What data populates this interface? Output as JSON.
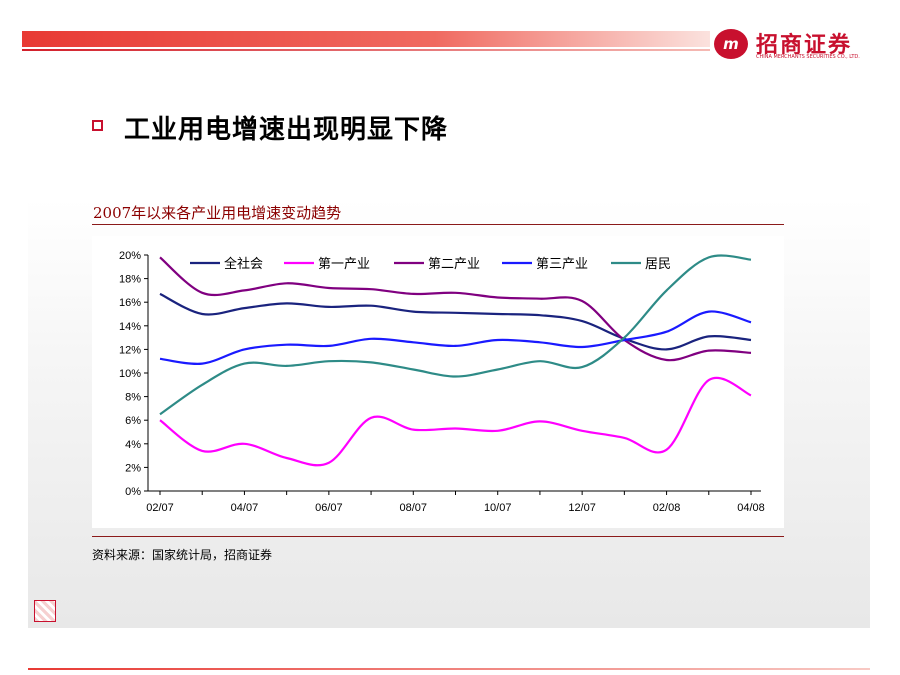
{
  "header": {
    "logo_badge": "m",
    "logo_cn": "招商证券",
    "logo_en": "CHINA MERCHANTS SECURITIES CO., LTD."
  },
  "slide": {
    "heading": "工业用电增速出现明显下降",
    "source": "资料来源：国家统计局，招商证券"
  },
  "colors": {
    "accent": "#c8102e",
    "title_text": "#8b0000"
  },
  "chart_data": {
    "type": "line",
    "title": "2007年以来各产业用电增速变动趋势",
    "x": [
      "02/07",
      "03/07",
      "04/07",
      "05/07",
      "06/07",
      "07/07",
      "08/07",
      "09/07",
      "10/07",
      "11/07",
      "12/07",
      "01/08",
      "02/08",
      "03/08",
      "04/08"
    ],
    "xticks": [
      "02/07",
      "04/07",
      "06/07",
      "08/07",
      "10/07",
      "12/07",
      "02/08",
      "04/08"
    ],
    "ylim": [
      0,
      20
    ],
    "yticks": [
      "0%",
      "2%",
      "4%",
      "6%",
      "8%",
      "10%",
      "12%",
      "14%",
      "16%",
      "18%",
      "20%"
    ],
    "grid": false,
    "legend": "top",
    "series": [
      {
        "name": "全社会",
        "color": "#1a237e",
        "values": [
          16.7,
          15.0,
          15.5,
          15.9,
          15.6,
          15.7,
          15.2,
          15.1,
          15.0,
          14.9,
          14.4,
          12.9,
          12.0,
          13.1,
          12.8
        ]
      },
      {
        "name": "第一产业",
        "color": "#ff00ff",
        "values": [
          6.0,
          3.4,
          4.0,
          2.8,
          2.4,
          6.2,
          5.2,
          5.3,
          5.1,
          5.9,
          5.1,
          4.5,
          3.5,
          9.4,
          8.1
        ]
      },
      {
        "name": "第二产业",
        "color": "#800080",
        "values": [
          19.8,
          16.8,
          17.0,
          17.6,
          17.2,
          17.1,
          16.7,
          16.8,
          16.4,
          16.3,
          16.1,
          12.8,
          11.1,
          11.9,
          11.7
        ]
      },
      {
        "name": "第三产业",
        "color": "#1a1aff",
        "values": [
          11.2,
          10.8,
          12.0,
          12.4,
          12.3,
          12.9,
          12.6,
          12.3,
          12.8,
          12.6,
          12.2,
          12.8,
          13.5,
          15.2,
          14.3
        ]
      },
      {
        "name": "居民",
        "color": "#2e8b87",
        "values": [
          6.5,
          9.0,
          10.8,
          10.6,
          11.0,
          10.9,
          10.3,
          9.7,
          10.3,
          11.0,
          10.5,
          13.0,
          17.0,
          19.8,
          19.6
        ]
      }
    ]
  }
}
